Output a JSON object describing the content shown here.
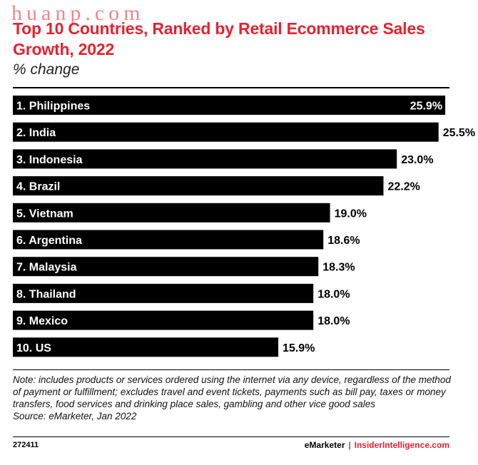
{
  "header": {
    "watermark": "huanp.com",
    "title": "Top 10 Countries, Ranked by Retail Ecommerce Sales Growth, 2022",
    "subtitle": "% change"
  },
  "chart_data": {
    "type": "bar",
    "orientation": "horizontal",
    "categories": [
      "1. Philippines",
      "2. India",
      "3. Indonesia",
      "4. Brazil",
      "5. Vietnam",
      "6. Argentina",
      "7. Malaysia",
      "8. Thailand",
      "9. Mexico",
      "10. US"
    ],
    "values": [
      25.9,
      25.5,
      23.0,
      22.2,
      19.0,
      18.6,
      18.3,
      18.0,
      18.0,
      15.9
    ],
    "value_labels": [
      "25.9%",
      "25.5%",
      "23.0%",
      "22.2%",
      "19.0%",
      "18.6%",
      "18.3%",
      "18.0%",
      "18.0%",
      "15.9%"
    ],
    "title": "Top 10 Countries, Ranked by Retail Ecommerce Sales Growth, 2022",
    "ylabel": "% change",
    "bar_color": "#000000",
    "grid": false,
    "legend": "none"
  },
  "footnote": {
    "note": "Note: includes products or services ordered using the internet via any device, regardless of the method of payment or fulfillment; excludes travel and event tickets, payments such as bill pay, taxes or money transfers, food services and drinking place sales, gambling and other vice good sales",
    "source": "Source: eMarketer, Jan 2022"
  },
  "footer": {
    "chart_id": "272411",
    "brand": "eMarketer",
    "separator": "|",
    "brand2": "InsiderIntelligence.com"
  },
  "colors": {
    "accent": "#e8212e",
    "bar": "#000000"
  }
}
